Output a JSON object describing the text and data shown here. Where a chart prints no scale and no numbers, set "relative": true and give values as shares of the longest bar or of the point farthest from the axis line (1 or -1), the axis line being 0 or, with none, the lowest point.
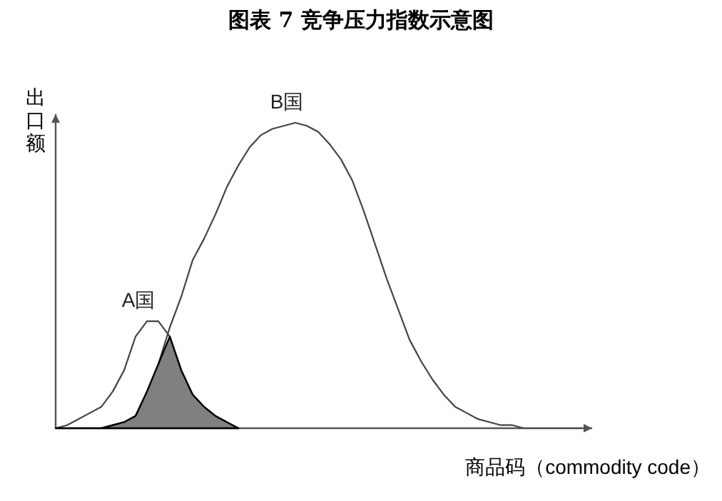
{
  "chart_data": {
    "type": "line",
    "title": "图表 7 竞争压力指数示意图",
    "xlabel": "商品码（commodity code）",
    "ylabel": "出口额",
    "relative": true,
    "categories": [
      null,
      null,
      null,
      null,
      null,
      null,
      null,
      null,
      null,
      null,
      null,
      null,
      null,
      null,
      null,
      null,
      null,
      null,
      null,
      null,
      null,
      null,
      null,
      null,
      null,
      null,
      null,
      null,
      null,
      null,
      null,
      null,
      null,
      null,
      null,
      null,
      null,
      null,
      null,
      null,
      null,
      null,
      null,
      null,
      null,
      null,
      null
    ],
    "series": [
      {
        "name": "B国",
        "color": "#444444",
        "values": [
          0,
          0,
          0,
          0,
          0,
          0.01,
          0.02,
          0.04,
          0.12,
          0.21,
          0.33,
          0.43,
          0.55,
          0.62,
          0.7,
          0.79,
          0.86,
          0.92,
          0.96,
          0.98,
          0.99,
          1,
          0.99,
          0.97,
          0.93,
          0.88,
          0.81,
          0.71,
          0.6,
          0.49,
          0.39,
          0.29,
          0.22,
          0.16,
          0.11,
          0.07,
          0.05,
          0.03,
          0.02,
          0.01,
          0.01,
          0,
          0,
          0,
          0,
          0,
          0
        ]
      },
      {
        "name": "A国",
        "color": "#444444",
        "values": [
          0,
          0.01,
          0.03,
          0.05,
          0.07,
          0.12,
          0.19,
          0.3,
          0.35,
          0.35,
          0.3,
          0.19,
          0.11,
          0.07,
          0.04,
          0.02,
          0,
          null,
          null,
          null,
          null,
          null,
          null,
          null,
          null,
          null,
          null,
          null,
          null,
          null,
          null,
          null,
          null,
          null,
          null,
          null,
          null,
          null,
          null,
          null,
          null,
          null,
          null,
          null,
          null,
          null,
          null
        ]
      },
      {
        "type": "area",
        "color": "#808080",
        "values": [
          0,
          0,
          0,
          0,
          0,
          0.01,
          0.02,
          0.04,
          0.12,
          0.21,
          0.3,
          0.19,
          0.11,
          0.07,
          0.04,
          0.02,
          0,
          null,
          null,
          null,
          null,
          null,
          null,
          null,
          null,
          null,
          null,
          null,
          null,
          null,
          null,
          null,
          null,
          null,
          null,
          null,
          null,
          null,
          null,
          null,
          null,
          null,
          null,
          null,
          null,
          null,
          null
        ]
      }
    ]
  }
}
